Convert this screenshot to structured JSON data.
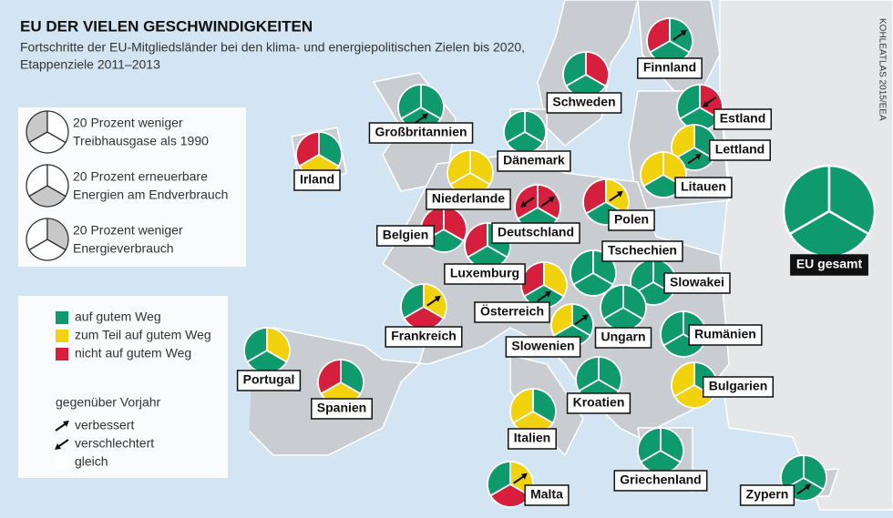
{
  "header": {
    "title": "EU DER VIELEN GESCHWINDIGKEITEN",
    "subtitle": [
      "Fortschritte der EU-Mitgliedsländer bei den klima- und energiepolitischen Zielen bis 2020,",
      "Etappenziele 2011–2013"
    ],
    "credit": "KOHLEATLAS 2015/EEA"
  },
  "segment_legend": [
    [
      "20 Prozent weniger",
      "Treibhausgase als 1990"
    ],
    [
      "20 Prozent erneuerbare",
      "Energien am Endverbrauch"
    ],
    [
      "20 Prozent weniger",
      "Energieverbrauch"
    ]
  ],
  "status_legend": [
    {
      "label": "auf gutem Weg",
      "color": "#0f9a6e"
    },
    {
      "label": "zum Teil auf gutem Weg",
      "color": "#f2d20c"
    },
    {
      "label": "nicht auf gutem Weg",
      "color": "#d51f3c"
    }
  ],
  "trend_legend": {
    "title": "gegenüber Vorjahr",
    "items": [
      "verbessert",
      "verschlechtert",
      "gleich"
    ]
  },
  "countries": [
    {
      "name": "Großbritannien",
      "segments": [
        "auf gutem Weg",
        "auf gutem Weg",
        "auf gutem Weg"
      ],
      "trend": [
        null,
        "verbessert",
        null
      ]
    },
    {
      "name": "Irland",
      "segments": [
        "nicht auf gutem Weg",
        "zum Teil auf gutem Weg",
        "auf gutem Weg"
      ],
      "trend": [
        null,
        null,
        null
      ]
    },
    {
      "name": "Schweden",
      "segments": [
        "auf gutem Weg",
        "auf gutem Weg",
        "nicht auf gutem Weg"
      ],
      "trend": [
        null,
        null,
        null
      ]
    },
    {
      "name": "Finnland",
      "segments": [
        "nicht auf gutem Weg",
        "auf gutem Weg",
        "auf gutem Weg"
      ],
      "trend": [
        null,
        null,
        "verbessert"
      ]
    },
    {
      "name": "Estland",
      "segments": [
        "auf gutem Weg",
        "auf gutem Weg",
        "nicht auf gutem Weg"
      ],
      "trend": [
        null,
        null,
        "verschlechtert"
      ]
    },
    {
      "name": "Dänemark",
      "segments": [
        "auf gutem Weg",
        "auf gutem Weg",
        "auf gutem Weg"
      ],
      "trend": [
        null,
        null,
        null
      ]
    },
    {
      "name": "Lettland",
      "segments": [
        "zum Teil auf gutem Weg",
        "auf gutem Weg",
        "auf gutem Weg"
      ],
      "trend": [
        null,
        "verbessert",
        null
      ]
    },
    {
      "name": "Niederlande",
      "segments": [
        "zum Teil auf gutem Weg",
        "zum Teil auf gutem Weg",
        "zum Teil auf gutem Weg"
      ],
      "trend": [
        null,
        null,
        null
      ]
    },
    {
      "name": "Litauen",
      "segments": [
        "zum Teil auf gutem Weg",
        "auf gutem Weg",
        "zum Teil auf gutem Weg"
      ],
      "trend": [
        null,
        null,
        null
      ]
    },
    {
      "name": "Deutschland",
      "segments": [
        "nicht auf gutem Weg",
        "auf gutem Weg",
        "nicht auf gutem Weg"
      ],
      "trend": [
        "verschlechtert",
        null,
        "verbessert"
      ]
    },
    {
      "name": "Polen",
      "segments": [
        "nicht auf gutem Weg",
        "auf gutem Weg",
        "zum Teil auf gutem Weg"
      ],
      "trend": [
        null,
        null,
        "verbessert"
      ]
    },
    {
      "name": "Belgien",
      "segments": [
        "nicht auf gutem Weg",
        "auf gutem Weg",
        "nicht auf gutem Weg"
      ],
      "trend": [
        null,
        null,
        null
      ]
    },
    {
      "name": "Luxemburg",
      "segments": [
        "nicht auf gutem Weg",
        "auf gutem Weg",
        "auf gutem Weg"
      ],
      "trend": [
        null,
        null,
        null
      ]
    },
    {
      "name": "Tschechien",
      "segments": [
        "auf gutem Weg",
        "auf gutem Weg",
        "auf gutem Weg"
      ],
      "trend": [
        null,
        null,
        null
      ]
    },
    {
      "name": "Slowakei",
      "segments": [
        "auf gutem Weg",
        "auf gutem Weg",
        "auf gutem Weg"
      ],
      "trend": [
        null,
        null,
        null
      ]
    },
    {
      "name": "Österreich",
      "segments": [
        "nicht auf gutem Weg",
        "auf gutem Weg",
        "zum Teil auf gutem Weg"
      ],
      "trend": [
        null,
        "verbessert",
        null
      ]
    },
    {
      "name": "Frankreich",
      "segments": [
        "auf gutem Weg",
        "nicht auf gutem Weg",
        "zum Teil auf gutem Weg"
      ],
      "trend": [
        null,
        null,
        "verbessert"
      ]
    },
    {
      "name": "Ungarn",
      "segments": [
        "auf gutem Weg",
        "auf gutem Weg",
        "auf gutem Weg"
      ],
      "trend": [
        null,
        null,
        null
      ]
    },
    {
      "name": "Slowenien",
      "segments": [
        "zum Teil auf gutem Weg",
        "auf gutem Weg",
        "auf gutem Weg"
      ],
      "trend": [
        null,
        null,
        "verbessert"
      ]
    },
    {
      "name": "Rumänien",
      "segments": [
        "auf gutem Weg",
        "auf gutem Weg",
        "auf gutem Weg"
      ],
      "trend": [
        null,
        null,
        null
      ]
    },
    {
      "name": "Portugal",
      "segments": [
        "auf gutem Weg",
        "auf gutem Weg",
        "zum Teil auf gutem Weg"
      ],
      "trend": [
        null,
        null,
        null
      ]
    },
    {
      "name": "Spanien",
      "segments": [
        "nicht auf gutem Weg",
        "zum Teil auf gutem Weg",
        "auf gutem Weg"
      ],
      "trend": [
        null,
        null,
        null
      ]
    },
    {
      "name": "Bulgarien",
      "segments": [
        "zum Teil auf gutem Weg",
        "zum Teil auf gutem Weg",
        "auf gutem Weg"
      ],
      "trend": [
        null,
        null,
        null
      ]
    },
    {
      "name": "Kroatien",
      "segments": [
        "auf gutem Weg",
        "auf gutem Weg",
        "auf gutem Weg"
      ],
      "trend": [
        null,
        null,
        null
      ]
    },
    {
      "name": "Italien",
      "segments": [
        "zum Teil auf gutem Weg",
        "zum Teil auf gutem Weg",
        "auf gutem Weg"
      ],
      "trend": [
        null,
        null,
        null
      ]
    },
    {
      "name": "Griechenland",
      "segments": [
        "auf gutem Weg",
        "auf gutem Weg",
        "auf gutem Weg"
      ],
      "trend": [
        null,
        null,
        null
      ]
    },
    {
      "name": "Malta",
      "segments": [
        "auf gutem Weg",
        "nicht auf gutem Weg",
        "zum Teil auf gutem Weg"
      ],
      "trend": [
        null,
        null,
        "verbessert"
      ]
    },
    {
      "name": "Zypern",
      "segments": [
        "auf gutem Weg",
        "auf gutem Weg",
        "auf gutem Weg"
      ],
      "trend": [
        null,
        "verbessert",
        null
      ]
    },
    {
      "name": "EU gesamt",
      "segments": [
        "auf gutem Weg",
        "auf gutem Weg",
        "auf gutem Weg"
      ],
      "trend": [
        null,
        null,
        null
      ]
    }
  ]
}
